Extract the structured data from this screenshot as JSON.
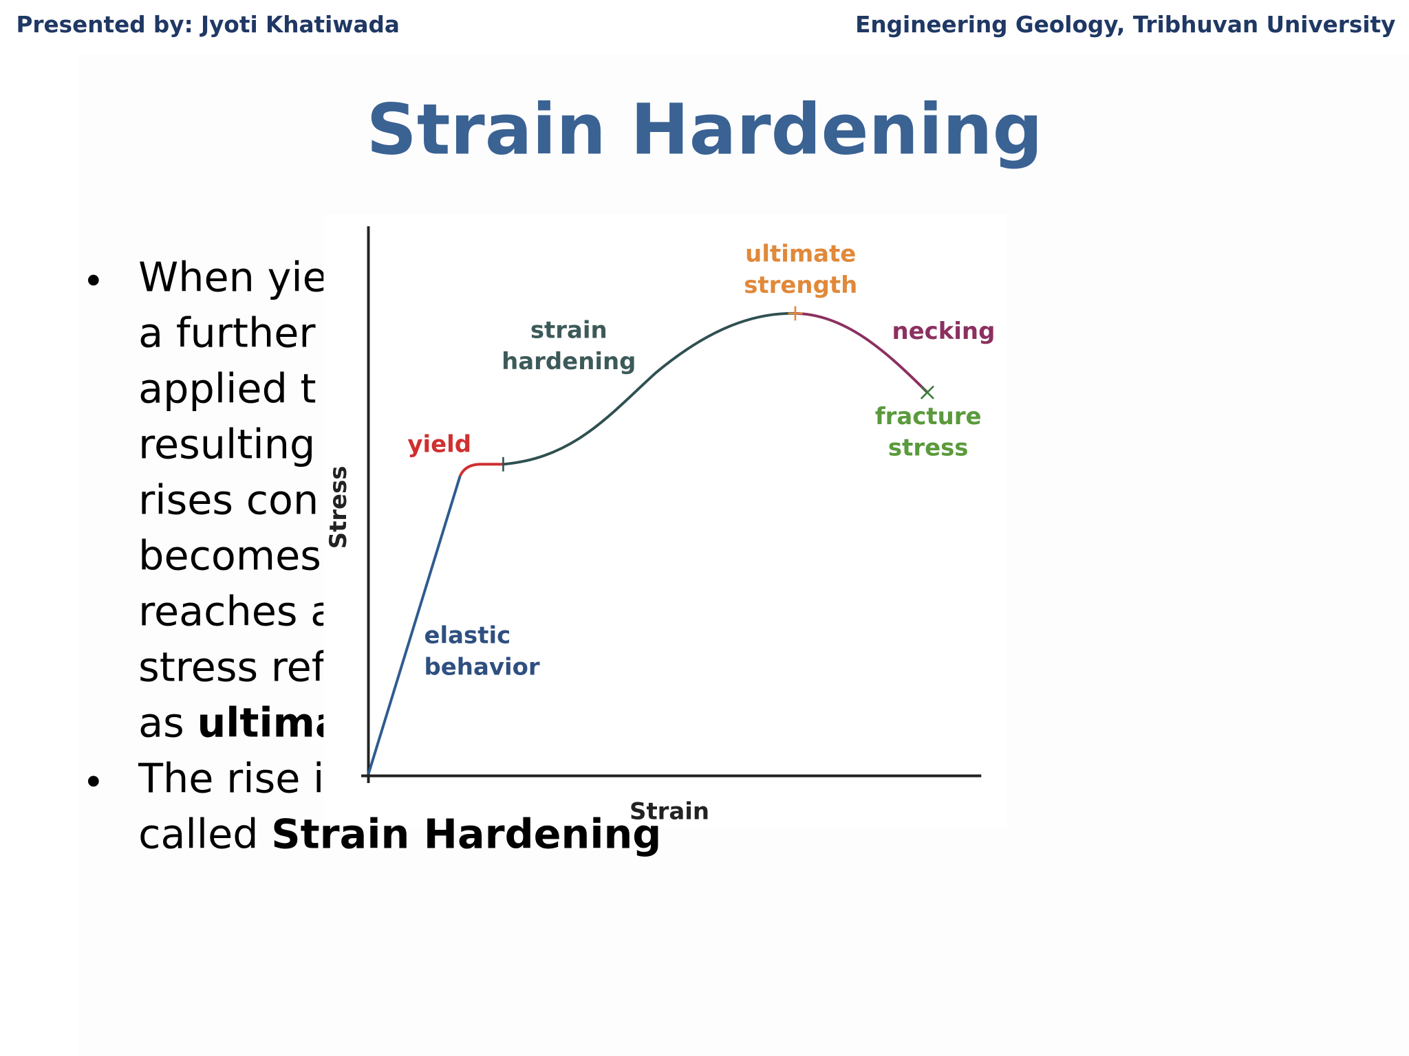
{
  "header": {
    "left": "Presented by: Jyoti Khatiwada",
    "right": "Engineering Geology, Tribhuvan University"
  },
  "title": "Strain Hardening",
  "bullets": [
    {
      "lines": [
        {
          "text": "When yie"
        },
        {
          "text": "a further"
        },
        {
          "text": "applied t"
        },
        {
          "text": "resulting"
        },
        {
          "text": "rises con"
        },
        {
          "text": "becomes"
        },
        {
          "text": "reaches a"
        },
        {
          "text": "stress ref"
        },
        {
          "text": "as ",
          "bold": "ultima"
        }
      ]
    },
    {
      "lines": [
        {
          "text": "The rise i"
        },
        {
          "text": "called ",
          "bold": "Strain Hardening"
        }
      ]
    }
  ],
  "diagram": {
    "ultimate": [
      "ultimate",
      "strength"
    ],
    "hardening": [
      "strain",
      "hardening"
    ],
    "necking": "necking",
    "fracture": [
      "fracture",
      "stress"
    ],
    "yield": "yield",
    "elastic": [
      "elastic",
      "behavior"
    ],
    "y_label": "Stress",
    "x_label": "Strain"
  }
}
